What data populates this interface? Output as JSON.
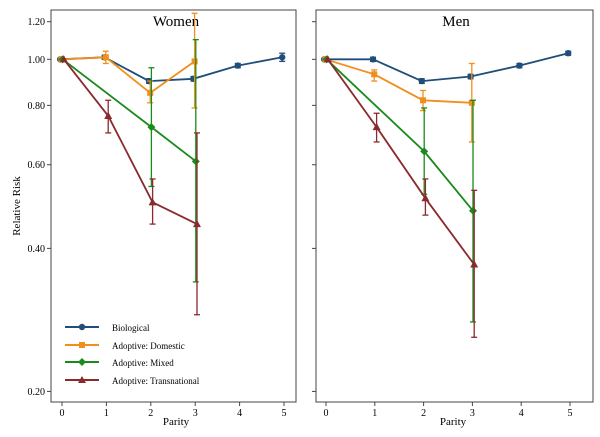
{
  "chart_data": {
    "type": "line",
    "ylabel": "Relative Risk",
    "xlabel": "Parity",
    "y_scale": "log",
    "ylim": [
      0.19,
      1.27
    ],
    "xlim": [
      -0.25,
      5.25
    ],
    "x_ticks": [
      0,
      1,
      2,
      3,
      4,
      5
    ],
    "y_ticks": [
      0.2,
      0.4,
      0.6,
      0.8,
      1.0,
      1.2
    ],
    "y_tick_labels": [
      "0.20",
      "0.40",
      "0.60",
      "0.80",
      "1.00",
      "1.20"
    ],
    "legend": {
      "placement": "bottom-left",
      "entries": [
        "Biological",
        "Adoptive: Domestic",
        "Adoptive: Mixed",
        "Adoptive: Transnational"
      ]
    },
    "series_styles": [
      {
        "name": "Biological",
        "color": "#1f4e79",
        "marker": "circle"
      },
      {
        "name": "Adoptive: Domestic",
        "color": "#f28e1c",
        "marker": "square"
      },
      {
        "name": "Adoptive: Mixed",
        "color": "#1a8a1a",
        "marker": "diamond"
      },
      {
        "name": "Adoptive: Transnational",
        "color": "#8b2a2e",
        "marker": "triangle"
      }
    ],
    "panels": [
      {
        "title": "Women",
        "series": [
          {
            "name": "Biological",
            "points": [
              {
                "x": 0,
                "y": 1.0,
                "lo": 1.0,
                "hi": 1.0
              },
              {
                "x": 1,
                "y": 1.01,
                "lo": 1.0,
                "hi": 1.02
              },
              {
                "x": 2,
                "y": 0.9,
                "lo": 0.89,
                "hi": 0.91
              },
              {
                "x": 3,
                "y": 0.91,
                "lo": 0.9,
                "hi": 0.92
              },
              {
                "x": 4,
                "y": 0.97,
                "lo": 0.96,
                "hi": 0.98
              },
              {
                "x": 5,
                "y": 1.01,
                "lo": 0.99,
                "hi": 1.03
              }
            ]
          },
          {
            "name": "Adoptive: Domestic",
            "points": [
              {
                "x": 0,
                "y": 1.0,
                "lo": 1.0,
                "hi": 1.0
              },
              {
                "x": 1,
                "y": 1.01,
                "lo": 0.98,
                "hi": 1.04
              },
              {
                "x": 2,
                "y": 0.85,
                "lo": 0.81,
                "hi": 0.9
              },
              {
                "x": 3,
                "y": 0.99,
                "lo": 0.79,
                "hi": 1.25
              }
            ]
          },
          {
            "name": "Adoptive: Mixed",
            "points": [
              {
                "x": 0,
                "y": 1.0,
                "lo": 1.0,
                "hi": 1.0
              },
              {
                "x": 2,
                "y": 0.72,
                "lo": 0.54,
                "hi": 0.96
              },
              {
                "x": 3,
                "y": 0.61,
                "lo": 0.34,
                "hi": 1.1
              }
            ]
          },
          {
            "name": "Adoptive: Transnational",
            "points": [
              {
                "x": 0,
                "y": 1.0,
                "lo": 1.0,
                "hi": 1.0
              },
              {
                "x": 1,
                "y": 0.76,
                "lo": 0.7,
                "hi": 0.82
              },
              {
                "x": 2,
                "y": 0.5,
                "lo": 0.45,
                "hi": 0.56
              },
              {
                "x": 3,
                "y": 0.45,
                "lo": 0.29,
                "hi": 0.7
              }
            ]
          }
        ]
      },
      {
        "title": "Men",
        "series": [
          {
            "name": "Biological",
            "points": [
              {
                "x": 0,
                "y": 1.0,
                "lo": 1.0,
                "hi": 1.0
              },
              {
                "x": 1,
                "y": 1.0,
                "lo": 0.99,
                "hi": 1.01
              },
              {
                "x": 2,
                "y": 0.9,
                "lo": 0.89,
                "hi": 0.91
              },
              {
                "x": 3,
                "y": 0.92,
                "lo": 0.91,
                "hi": 0.93
              },
              {
                "x": 4,
                "y": 0.97,
                "lo": 0.96,
                "hi": 0.98
              },
              {
                "x": 5,
                "y": 1.03,
                "lo": 1.02,
                "hi": 1.04
              }
            ]
          },
          {
            "name": "Adoptive: Domestic",
            "points": [
              {
                "x": 0,
                "y": 1.0,
                "lo": 1.0,
                "hi": 1.0
              },
              {
                "x": 1,
                "y": 0.93,
                "lo": 0.9,
                "hi": 0.95
              },
              {
                "x": 2,
                "y": 0.82,
                "lo": 0.78,
                "hi": 0.86
              },
              {
                "x": 3,
                "y": 0.81,
                "lo": 0.67,
                "hi": 0.98
              }
            ]
          },
          {
            "name": "Adoptive: Mixed",
            "points": [
              {
                "x": 0,
                "y": 1.0,
                "lo": 1.0,
                "hi": 1.0
              },
              {
                "x": 2,
                "y": 0.64,
                "lo": 0.52,
                "hi": 0.79
              },
              {
                "x": 3,
                "y": 0.48,
                "lo": 0.28,
                "hi": 0.82
              }
            ]
          },
          {
            "name": "Adoptive: Transnational",
            "points": [
              {
                "x": 0,
                "y": 1.0,
                "lo": 1.0,
                "hi": 1.0
              },
              {
                "x": 1,
                "y": 0.72,
                "lo": 0.67,
                "hi": 0.77
              },
              {
                "x": 2,
                "y": 0.51,
                "lo": 0.47,
                "hi": 0.56
              },
              {
                "x": 3,
                "y": 0.37,
                "lo": 0.26,
                "hi": 0.53
              }
            ]
          }
        ]
      }
    ]
  }
}
